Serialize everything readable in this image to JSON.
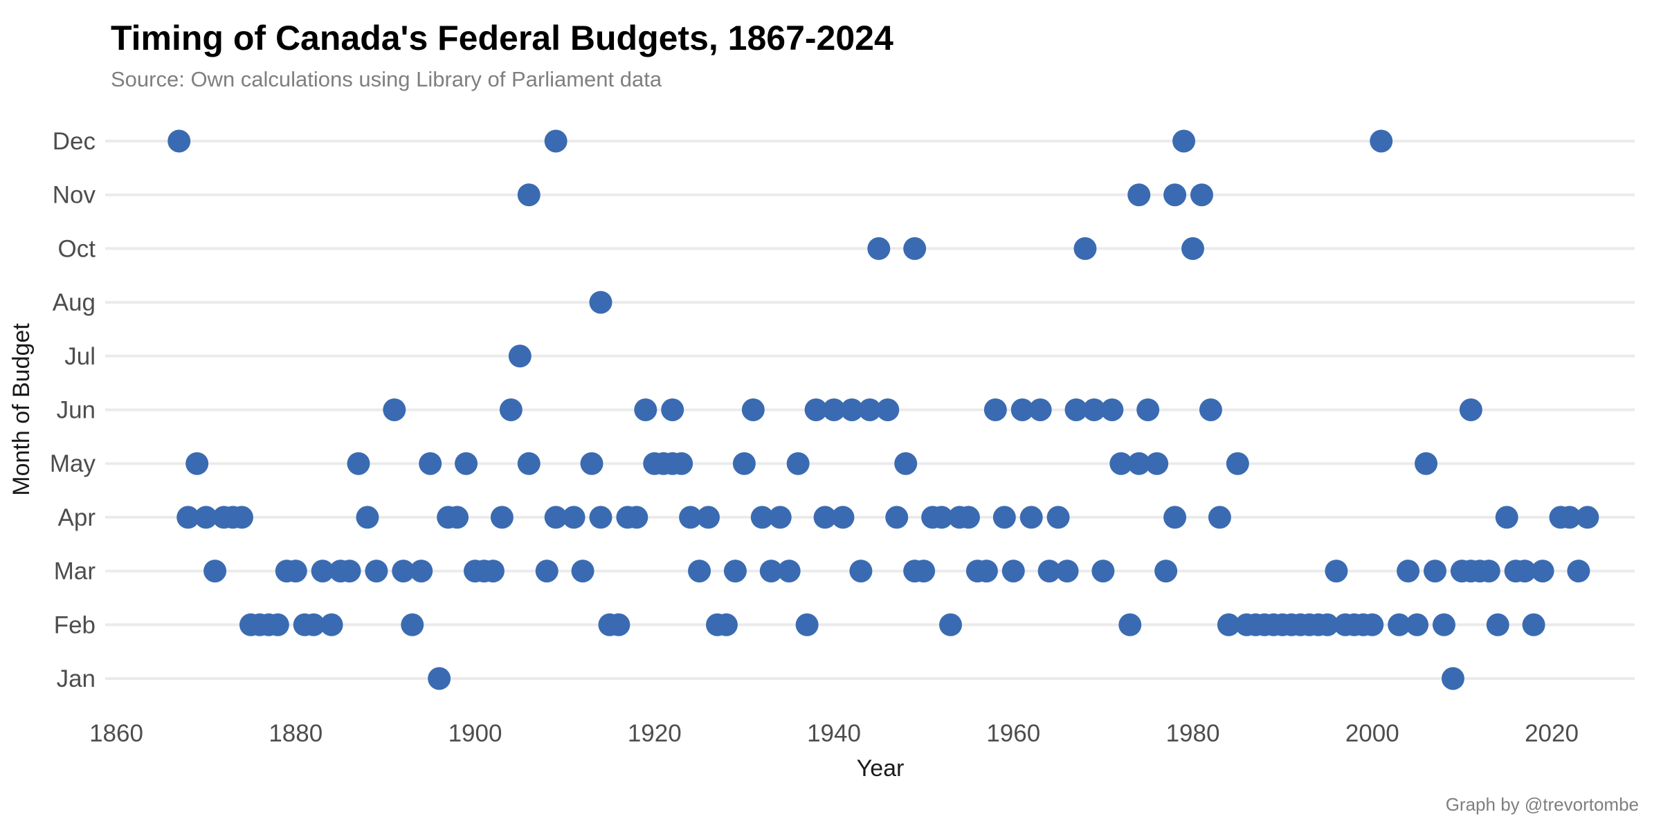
{
  "title": "Timing of Canada's Federal Budgets, 1867-2024",
  "subtitle": "Source: Own calculations using Library of Parliament data",
  "credit": "Graph by @trevortombe",
  "colors": {
    "point": "#3a6bb2",
    "gridline": "#ebebeb",
    "title": "#000000",
    "subtitle_gray": "#7f7f7f",
    "tick_gray": "#4d4d4d"
  },
  "chart_data": {
    "type": "scatter",
    "title": "Timing of Canada's Federal Budgets, 1867-2024",
    "xlabel": "Year",
    "ylabel": "Month of Budget",
    "x_ticks": [
      1860,
      1880,
      1900,
      1920,
      1940,
      1960,
      1980,
      2000,
      2020
    ],
    "xlim": [
      1858,
      2030
    ],
    "grid": "horizontal-only",
    "legend": "none",
    "y_categories_top_to_bottom": [
      "Dec",
      "Nov",
      "Oct",
      "Aug",
      "Jul",
      "Jun",
      "May",
      "Apr",
      "Mar",
      "Feb",
      "Jan"
    ],
    "points_by_month": {
      "Dec": [
        1867,
        1909,
        1979,
        2001
      ],
      "Nov": [
        1906,
        1974,
        1978,
        1981
      ],
      "Oct": [
        1945,
        1949,
        1968,
        1980
      ],
      "Aug": [
        1914
      ],
      "Jul": [
        1905
      ],
      "Jun": [
        1891,
        1904,
        1919,
        1922,
        1931,
        1938,
        1940,
        1942,
        1944,
        1946,
        1958,
        1961,
        1963,
        1967,
        1969,
        1971,
        1975,
        1982,
        2011
      ],
      "May": [
        1869,
        1887,
        1895,
        1899,
        1906,
        1913,
        1920,
        1921,
        1922,
        1923,
        1930,
        1936,
        1948,
        1972,
        1974,
        1976,
        1985,
        2006
      ],
      "Apr": [
        1868,
        1870,
        1872,
        1873,
        1874,
        1888,
        1897,
        1898,
        1903,
        1909,
        1911,
        1914,
        1917,
        1918,
        1924,
        1926,
        1932,
        1934,
        1939,
        1941,
        1947,
        1951,
        1952,
        1954,
        1955,
        1959,
        1962,
        1965,
        1978,
        1983,
        2015,
        2021,
        2022,
        2024
      ],
      "Mar": [
        1871,
        1879,
        1880,
        1883,
        1885,
        1886,
        1889,
        1892,
        1894,
        1900,
        1901,
        1902,
        1908,
        1912,
        1925,
        1929,
        1933,
        1935,
        1943,
        1949,
        1950,
        1956,
        1957,
        1960,
        1964,
        1966,
        1970,
        1977,
        1996,
        2004,
        2007,
        2010,
        2011,
        2012,
        2013,
        2016,
        2017,
        2019,
        2023
      ],
      "Feb": [
        1875,
        1876,
        1877,
        1878,
        1881,
        1882,
        1884,
        1893,
        1915,
        1916,
        1927,
        1928,
        1937,
        1953,
        1973,
        1984,
        1986,
        1987,
        1988,
        1989,
        1990,
        1991,
        1992,
        1993,
        1994,
        1995,
        1997,
        1998,
        1999,
        2000,
        2003,
        2005,
        2008,
        2014,
        2018
      ],
      "Jan": [
        1896,
        2009
      ]
    }
  },
  "layout_note_values": {
    "point_radius_px": 16.5
  }
}
